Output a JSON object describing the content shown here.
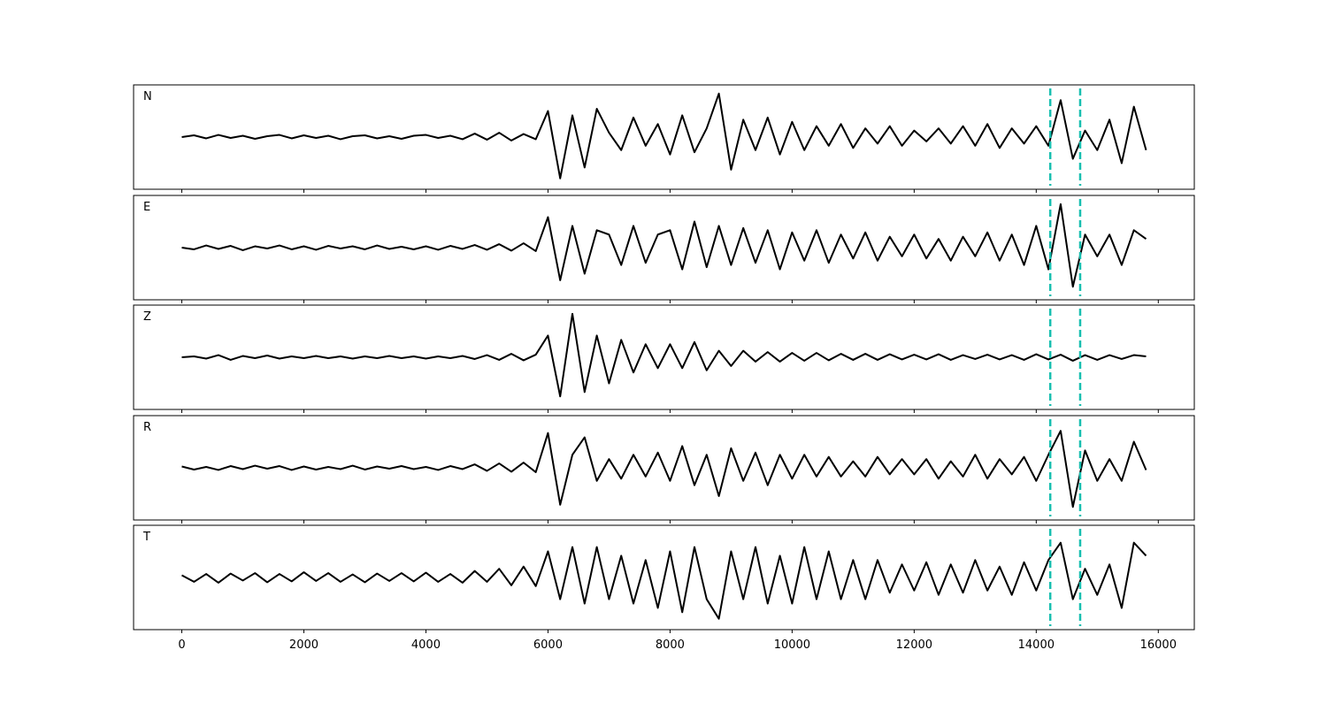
{
  "chart_data": {
    "type": "line",
    "layout": "stacked",
    "x": [
      0,
      200,
      400,
      600,
      800,
      1000,
      1200,
      1400,
      1600,
      1800,
      2000,
      2200,
      2400,
      2600,
      2800,
      3000,
      3200,
      3400,
      3600,
      3800,
      4000,
      4200,
      4400,
      4600,
      4800,
      5000,
      5200,
      5400,
      5600,
      5800,
      6000,
      6200,
      6400,
      6600,
      6800,
      7000,
      7200,
      7400,
      7600,
      7800,
      8000,
      8200,
      8400,
      8600,
      8800,
      9000,
      9200,
      9400,
      9600,
      9800,
      10000,
      10200,
      10400,
      10600,
      10800,
      11000,
      11200,
      11400,
      11600,
      11800,
      12000,
      12200,
      12400,
      12600,
      12800,
      13000,
      13200,
      13400,
      13600,
      13800,
      14000,
      14200,
      14400,
      14600,
      14800,
      15000,
      15200,
      15400,
      15600,
      15800
    ],
    "xlim": [
      -790,
      16590
    ],
    "xticks": [
      0,
      2000,
      4000,
      6000,
      8000,
      10000,
      12000,
      14000,
      16000
    ],
    "ylim": [
      -1.2,
      1.2
    ],
    "series": [
      {
        "name": "N",
        "color": "#000000",
        "values": [
          0,
          0.04,
          -0.03,
          0.05,
          -0.02,
          0.03,
          -0.04,
          0.02,
          0.05,
          -0.03,
          0.04,
          -0.02,
          0.03,
          -0.05,
          0.02,
          0.04,
          -0.03,
          0.02,
          -0.04,
          0.03,
          0.05,
          -0.02,
          0.03,
          -0.05,
          0.08,
          -0.06,
          0.1,
          -0.08,
          0.07,
          -0.05,
          0.6,
          -0.95,
          0.5,
          -0.7,
          0.65,
          0.1,
          -0.3,
          0.45,
          -0.2,
          0.3,
          -0.4,
          0.5,
          -0.35,
          0.2,
          1.0,
          -0.75,
          0.4,
          -0.3,
          0.45,
          -0.4,
          0.35,
          -0.3,
          0.25,
          -0.2,
          0.3,
          -0.25,
          0.2,
          -0.15,
          0.25,
          -0.2,
          0.15,
          -0.1,
          0.2,
          -0.15,
          0.25,
          -0.2,
          0.3,
          -0.25,
          0.2,
          -0.15,
          0.25,
          -0.2,
          0.85,
          -0.5,
          0.15,
          -0.3,
          0.4,
          -0.6,
          0.7,
          -0.3
        ]
      },
      {
        "name": "E",
        "color": "#000000",
        "values": [
          0,
          -0.04,
          0.05,
          -0.03,
          0.04,
          -0.06,
          0.03,
          -0.02,
          0.05,
          -0.04,
          0.03,
          -0.05,
          0.04,
          -0.02,
          0.03,
          -0.04,
          0.05,
          -0.03,
          0.02,
          -0.04,
          0.03,
          -0.05,
          0.04,
          -0.03,
          0.06,
          -0.05,
          0.08,
          -0.07,
          0.1,
          -0.08,
          0.7,
          -0.75,
          0.5,
          -0.6,
          0.4,
          0.3,
          -0.4,
          0.5,
          -0.35,
          0.3,
          0.4,
          -0.5,
          0.6,
          -0.45,
          0.5,
          -0.4,
          0.45,
          -0.35,
          0.4,
          -0.5,
          0.35,
          -0.3,
          0.4,
          -0.35,
          0.3,
          -0.25,
          0.35,
          -0.3,
          0.25,
          -0.2,
          0.3,
          -0.25,
          0.2,
          -0.3,
          0.25,
          -0.2,
          0.35,
          -0.3,
          0.3,
          -0.4,
          0.5,
          -0.5,
          1.0,
          -0.9,
          0.3,
          -0.2,
          0.3,
          -0.4,
          0.4,
          0.2
        ]
      },
      {
        "name": "Z",
        "color": "#000000",
        "values": [
          0,
          0.02,
          -0.03,
          0.05,
          -0.06,
          0.03,
          -0.02,
          0.04,
          -0.03,
          0.02,
          -0.02,
          0.03,
          -0.02,
          0.02,
          -0.03,
          0.02,
          -0.02,
          0.03,
          -0.02,
          0.02,
          -0.03,
          0.02,
          -0.02,
          0.03,
          -0.04,
          0.05,
          -0.06,
          0.08,
          -0.07,
          0.06,
          0.5,
          -0.9,
          1.0,
          -0.8,
          0.5,
          -0.6,
          0.4,
          -0.35,
          0.3,
          -0.25,
          0.3,
          -0.25,
          0.35,
          -0.3,
          0.15,
          -0.2,
          0.15,
          -0.1,
          0.12,
          -0.1,
          0.1,
          -0.08,
          0.1,
          -0.07,
          0.08,
          -0.06,
          0.08,
          -0.06,
          0.07,
          -0.05,
          0.06,
          -0.05,
          0.07,
          -0.06,
          0.05,
          -0.04,
          0.06,
          -0.05,
          0.05,
          -0.06,
          0.07,
          -0.05,
          0.06,
          -0.08,
          0.05,
          -0.06,
          0.05,
          -0.04,
          0.05,
          0.02
        ]
      },
      {
        "name": "R",
        "color": "#000000",
        "values": [
          0.03,
          -0.04,
          0.02,
          -0.05,
          0.04,
          -0.03,
          0.05,
          -0.02,
          0.04,
          -0.05,
          0.03,
          -0.04,
          0.02,
          -0.03,
          0.05,
          -0.04,
          0.03,
          -0.02,
          0.04,
          -0.03,
          0.02,
          -0.05,
          0.04,
          -0.03,
          0.08,
          -0.07,
          0.1,
          -0.09,
          0.12,
          -0.1,
          0.8,
          -0.85,
          0.3,
          0.7,
          -0.3,
          0.2,
          -0.25,
          0.3,
          -0.2,
          0.35,
          -0.3,
          0.5,
          -0.4,
          0.3,
          -0.65,
          0.45,
          -0.3,
          0.35,
          -0.4,
          0.3,
          -0.25,
          0.3,
          -0.2,
          0.25,
          -0.2,
          0.15,
          -0.2,
          0.25,
          -0.15,
          0.2,
          -0.15,
          0.2,
          -0.25,
          0.15,
          -0.2,
          0.3,
          -0.25,
          0.2,
          -0.15,
          0.25,
          -0.3,
          0.3,
          0.85,
          -0.9,
          0.4,
          -0.3,
          0.2,
          -0.3,
          0.6,
          -0.05
        ]
      },
      {
        "name": "T",
        "color": "#000000",
        "values": [
          0.05,
          -0.1,
          0.08,
          -0.12,
          0.09,
          -0.07,
          0.1,
          -0.11,
          0.08,
          -0.09,
          0.12,
          -0.08,
          0.1,
          -0.1,
          0.07,
          -0.11,
          0.09,
          -0.08,
          0.1,
          -0.09,
          0.11,
          -0.1,
          0.08,
          -0.12,
          0.15,
          -0.1,
          0.2,
          -0.18,
          0.25,
          -0.2,
          0.6,
          -0.5,
          0.7,
          -0.6,
          0.7,
          -0.5,
          0.5,
          -0.6,
          0.4,
          -0.7,
          0.6,
          -0.8,
          0.7,
          -0.5,
          -0.95,
          0.6,
          -0.5,
          0.7,
          -0.6,
          0.5,
          -0.6,
          0.7,
          -0.5,
          0.6,
          -0.5,
          0.4,
          -0.5,
          0.4,
          -0.35,
          0.3,
          -0.3,
          0.35,
          -0.4,
          0.3,
          -0.35,
          0.4,
          -0.3,
          0.25,
          -0.4,
          0.35,
          -0.3,
          0.4,
          0.8,
          -0.5,
          0.2,
          -0.4,
          0.3,
          -0.7,
          0.8,
          0.5
        ]
      }
    ],
    "vlines": {
      "color": "#17bfb0",
      "dashed": true,
      "values": [
        14230,
        14720
      ]
    }
  }
}
